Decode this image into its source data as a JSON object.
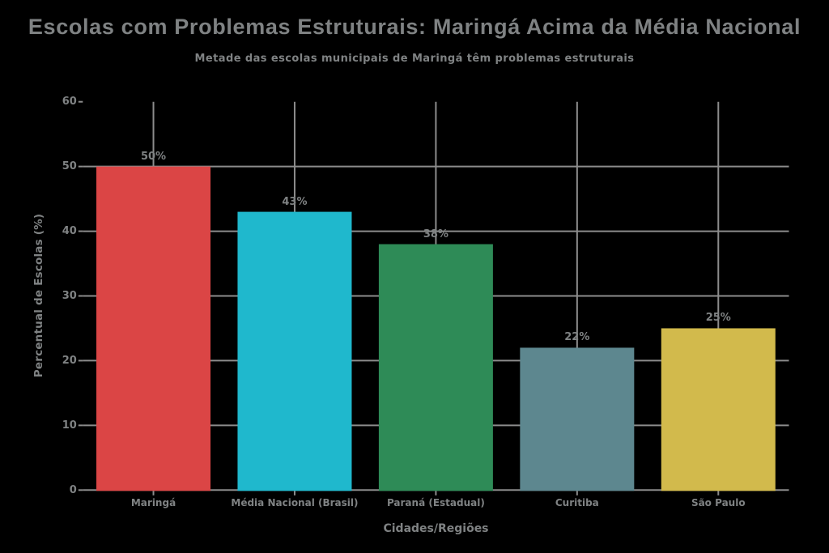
{
  "page": {
    "background_color": "#000000",
    "text_color": "#7f8283",
    "grid_color": "#8c8c8c"
  },
  "chart_data": {
    "type": "bar",
    "title": "Escolas com Problemas Estruturais: Maringá Acima da Média Nacional",
    "subtitle": "Metade das escolas municipais de Maringá têm problemas estruturais",
    "xlabel": "Cidades/Regiões",
    "ylabel": "Percentual de Escolas (%)",
    "categories": [
      "Maringá",
      "Média Nacional (Brasil)",
      "Paraná (Estadual)",
      "Curitiba",
      "São Paulo"
    ],
    "values": [
      50,
      43,
      38,
      22,
      25
    ],
    "value_labels": [
      "50%",
      "43%",
      "38%",
      "22%",
      "25%"
    ],
    "bar_colors": [
      "#DB4545",
      "#1FB8CD",
      "#2E8B57",
      "#5D878F",
      "#D2BA4C"
    ],
    "ylim": [
      0,
      60
    ],
    "yticks": [
      0,
      10,
      20,
      30,
      40,
      50,
      60
    ],
    "ytick_labels": [
      "0",
      "10",
      "20",
      "30",
      "40",
      "50",
      "60"
    ],
    "grid": true,
    "legend": false
  }
}
